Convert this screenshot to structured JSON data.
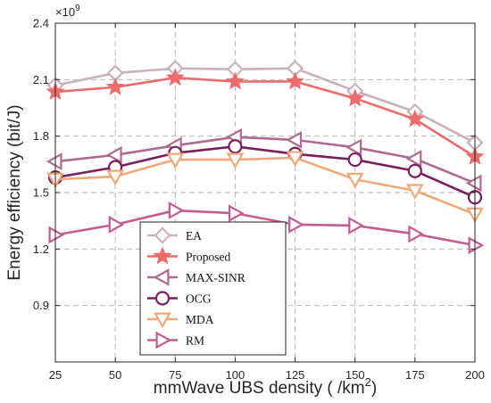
{
  "chart_data": {
    "type": "line",
    "x": [
      25,
      50,
      75,
      100,
      125,
      150,
      175,
      200
    ],
    "xlabel_main": "mmWave UBS density ( /km",
    "xlabel_sup": "2",
    "xlabel_end": ")",
    "ylabel": "Energy efficiency (bit/J)",
    "exponent_base": "×10",
    "exponent_power": "9",
    "xticks": [
      "25",
      "50",
      "75",
      "100",
      "125",
      "150",
      "175",
      "200"
    ],
    "yticks": [
      "0.9",
      "1.2",
      "1.5",
      "1.8",
      "2.1",
      "2.4"
    ],
    "xlim": [
      25,
      200
    ],
    "ylim": [
      0.6,
      2.4
    ],
    "grid": true,
    "legend_position": "bottom-left",
    "series": [
      {
        "name": "EA",
        "marker": "diamond",
        "color": "#c9b2b8",
        "values": [
          2.07,
          2.135,
          2.16,
          2.155,
          2.16,
          2.04,
          1.93,
          1.765
        ]
      },
      {
        "name": "Proposed",
        "marker": "star",
        "color": "#ec6b6b",
        "values": [
          2.035,
          2.06,
          2.11,
          2.09,
          2.09,
          2.0,
          1.89,
          1.69
        ]
      },
      {
        "name": "MAX-SINR",
        "marker": "triangle-left",
        "color": "#b06a90",
        "values": [
          1.665,
          1.7,
          1.75,
          1.795,
          1.78,
          1.74,
          1.68,
          1.55
        ]
      },
      {
        "name": "OCG",
        "marker": "circle",
        "color": "#7a1f5e",
        "values": [
          1.58,
          1.635,
          1.71,
          1.745,
          1.705,
          1.675,
          1.615,
          1.475
        ]
      },
      {
        "name": "MDA",
        "marker": "triangle-down",
        "color": "#f0a878",
        "values": [
          1.57,
          1.585,
          1.675,
          1.675,
          1.685,
          1.57,
          1.51,
          1.385
        ]
      },
      {
        "name": "RM",
        "marker": "triangle-right",
        "color": "#c45c94",
        "values": [
          1.275,
          1.33,
          1.405,
          1.39,
          1.33,
          1.325,
          1.28,
          1.22
        ]
      }
    ]
  }
}
